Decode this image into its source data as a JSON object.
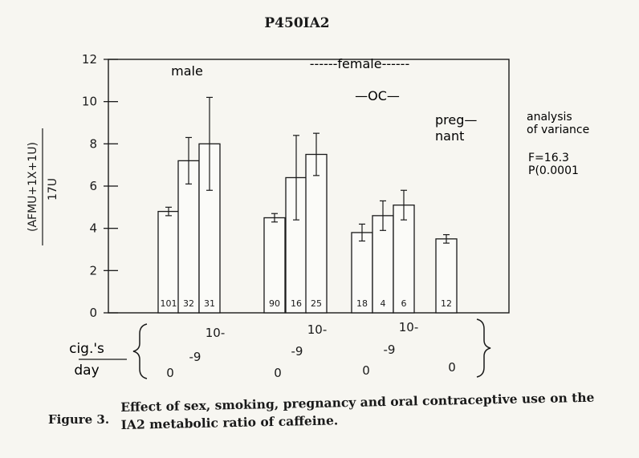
{
  "chart_data": {
    "type": "bar",
    "title": "P450IA2",
    "ylabel_top": "(AFMU+1X+1U)",
    "ylabel_bottom": "17U",
    "ylim": [
      0,
      12
    ],
    "yticks": [
      "0",
      "2",
      "4",
      "6",
      "8",
      "10",
      "12"
    ],
    "grid": false,
    "group_labels": {
      "male": "male",
      "female": "------female------",
      "oc": "—OC—",
      "pregnant_line1": "preg—",
      "pregnant_line2": "nant"
    },
    "bars": [
      {
        "group": "male",
        "cigs": "0",
        "value": 4.8,
        "error": 0.2,
        "n": "101"
      },
      {
        "group": "male",
        "cigs": "-9",
        "value": 7.2,
        "error": 1.1,
        "n": "32"
      },
      {
        "group": "male",
        "cigs": "10-",
        "value": 8.0,
        "error": 2.2,
        "n": "31"
      },
      {
        "group": "female",
        "cigs": "0",
        "value": 4.5,
        "error": 0.2,
        "n": "90"
      },
      {
        "group": "female",
        "cigs": "-9",
        "value": 6.4,
        "error": 2.0,
        "n": "16"
      },
      {
        "group": "female",
        "cigs": "10-",
        "value": 7.5,
        "error": 1.0,
        "n": "25"
      },
      {
        "group": "OC",
        "cigs": "0",
        "value": 3.8,
        "error": 0.4,
        "n": "18"
      },
      {
        "group": "OC",
        "cigs": "-9",
        "value": 4.6,
        "error": 0.7,
        "n": "4"
      },
      {
        "group": "OC",
        "cigs": "10-",
        "value": 5.1,
        "error": 0.7,
        "n": "6"
      },
      {
        "group": "pregnant",
        "cigs": "0",
        "value": 3.5,
        "error": 0.2,
        "n": "12"
      }
    ],
    "xaxis_label_top": "cig.'s",
    "xaxis_label_bottom": "day",
    "annotation": {
      "line1": "analysis",
      "line2": "of variance",
      "line3": "F=16.3",
      "line4": "P(0.0001"
    }
  },
  "caption": {
    "label": "Figure 3.",
    "text": "Effect of sex, smoking, pregnancy and oral contraceptive use on the IA2 metabolic ratio of caffeine."
  }
}
